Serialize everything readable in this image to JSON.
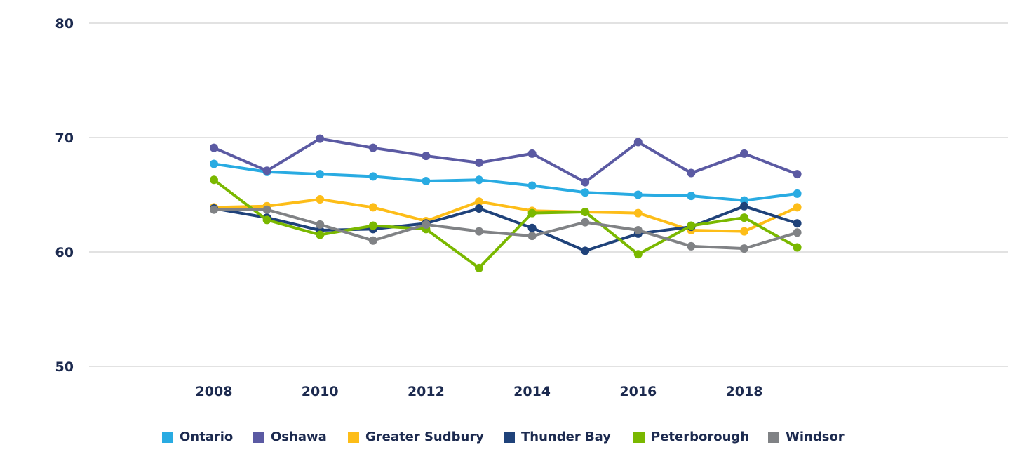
{
  "chart_data": {
    "type": "line",
    "title": "",
    "xlabel": "",
    "ylabel": "",
    "x": [
      2008,
      2009,
      2010,
      2011,
      2012,
      2013,
      2014,
      2015,
      2016,
      2017,
      2018,
      2019
    ],
    "xticks": [
      "2008",
      "2010",
      "2012",
      "2014",
      "2016",
      "2018"
    ],
    "yticks": [
      "50",
      "60",
      "70",
      "80"
    ],
    "ylim": [
      50,
      80
    ],
    "grid": "horizontal",
    "legend_position": "bottom",
    "series": [
      {
        "name": "Ontario",
        "color": "#29abe2",
        "values": [
          67.7,
          67.0,
          66.8,
          66.6,
          66.2,
          66.3,
          65.8,
          65.2,
          65.0,
          64.9,
          64.5,
          65.1
        ]
      },
      {
        "name": "Oshawa",
        "color": "#5b5aa3",
        "values": [
          69.1,
          67.1,
          69.9,
          69.1,
          68.4,
          67.8,
          68.6,
          66.1,
          69.6,
          66.9,
          68.6,
          66.8
        ]
      },
      {
        "name": "Greater Sudbury",
        "color": "#fdbd18",
        "values": [
          63.9,
          64.0,
          64.6,
          63.9,
          62.7,
          64.4,
          63.6,
          63.5,
          63.4,
          61.9,
          61.8,
          63.9
        ]
      },
      {
        "name": "Thunder Bay",
        "color": "#1f427a",
        "values": [
          63.8,
          63.0,
          61.9,
          62.0,
          62.5,
          63.8,
          62.1,
          60.1,
          61.6,
          62.2,
          64.0,
          62.5
        ]
      },
      {
        "name": "Peterborough",
        "color": "#7ab800",
        "values": [
          66.3,
          62.8,
          61.5,
          62.3,
          62.0,
          58.6,
          63.4,
          63.5,
          59.8,
          62.3,
          63.0,
          60.4
        ]
      },
      {
        "name": "Windsor",
        "color": "#808285",
        "values": [
          63.7,
          63.7,
          62.4,
          61.0,
          62.4,
          61.8,
          61.4,
          62.6,
          61.9,
          60.5,
          60.3,
          61.7
        ]
      }
    ]
  }
}
